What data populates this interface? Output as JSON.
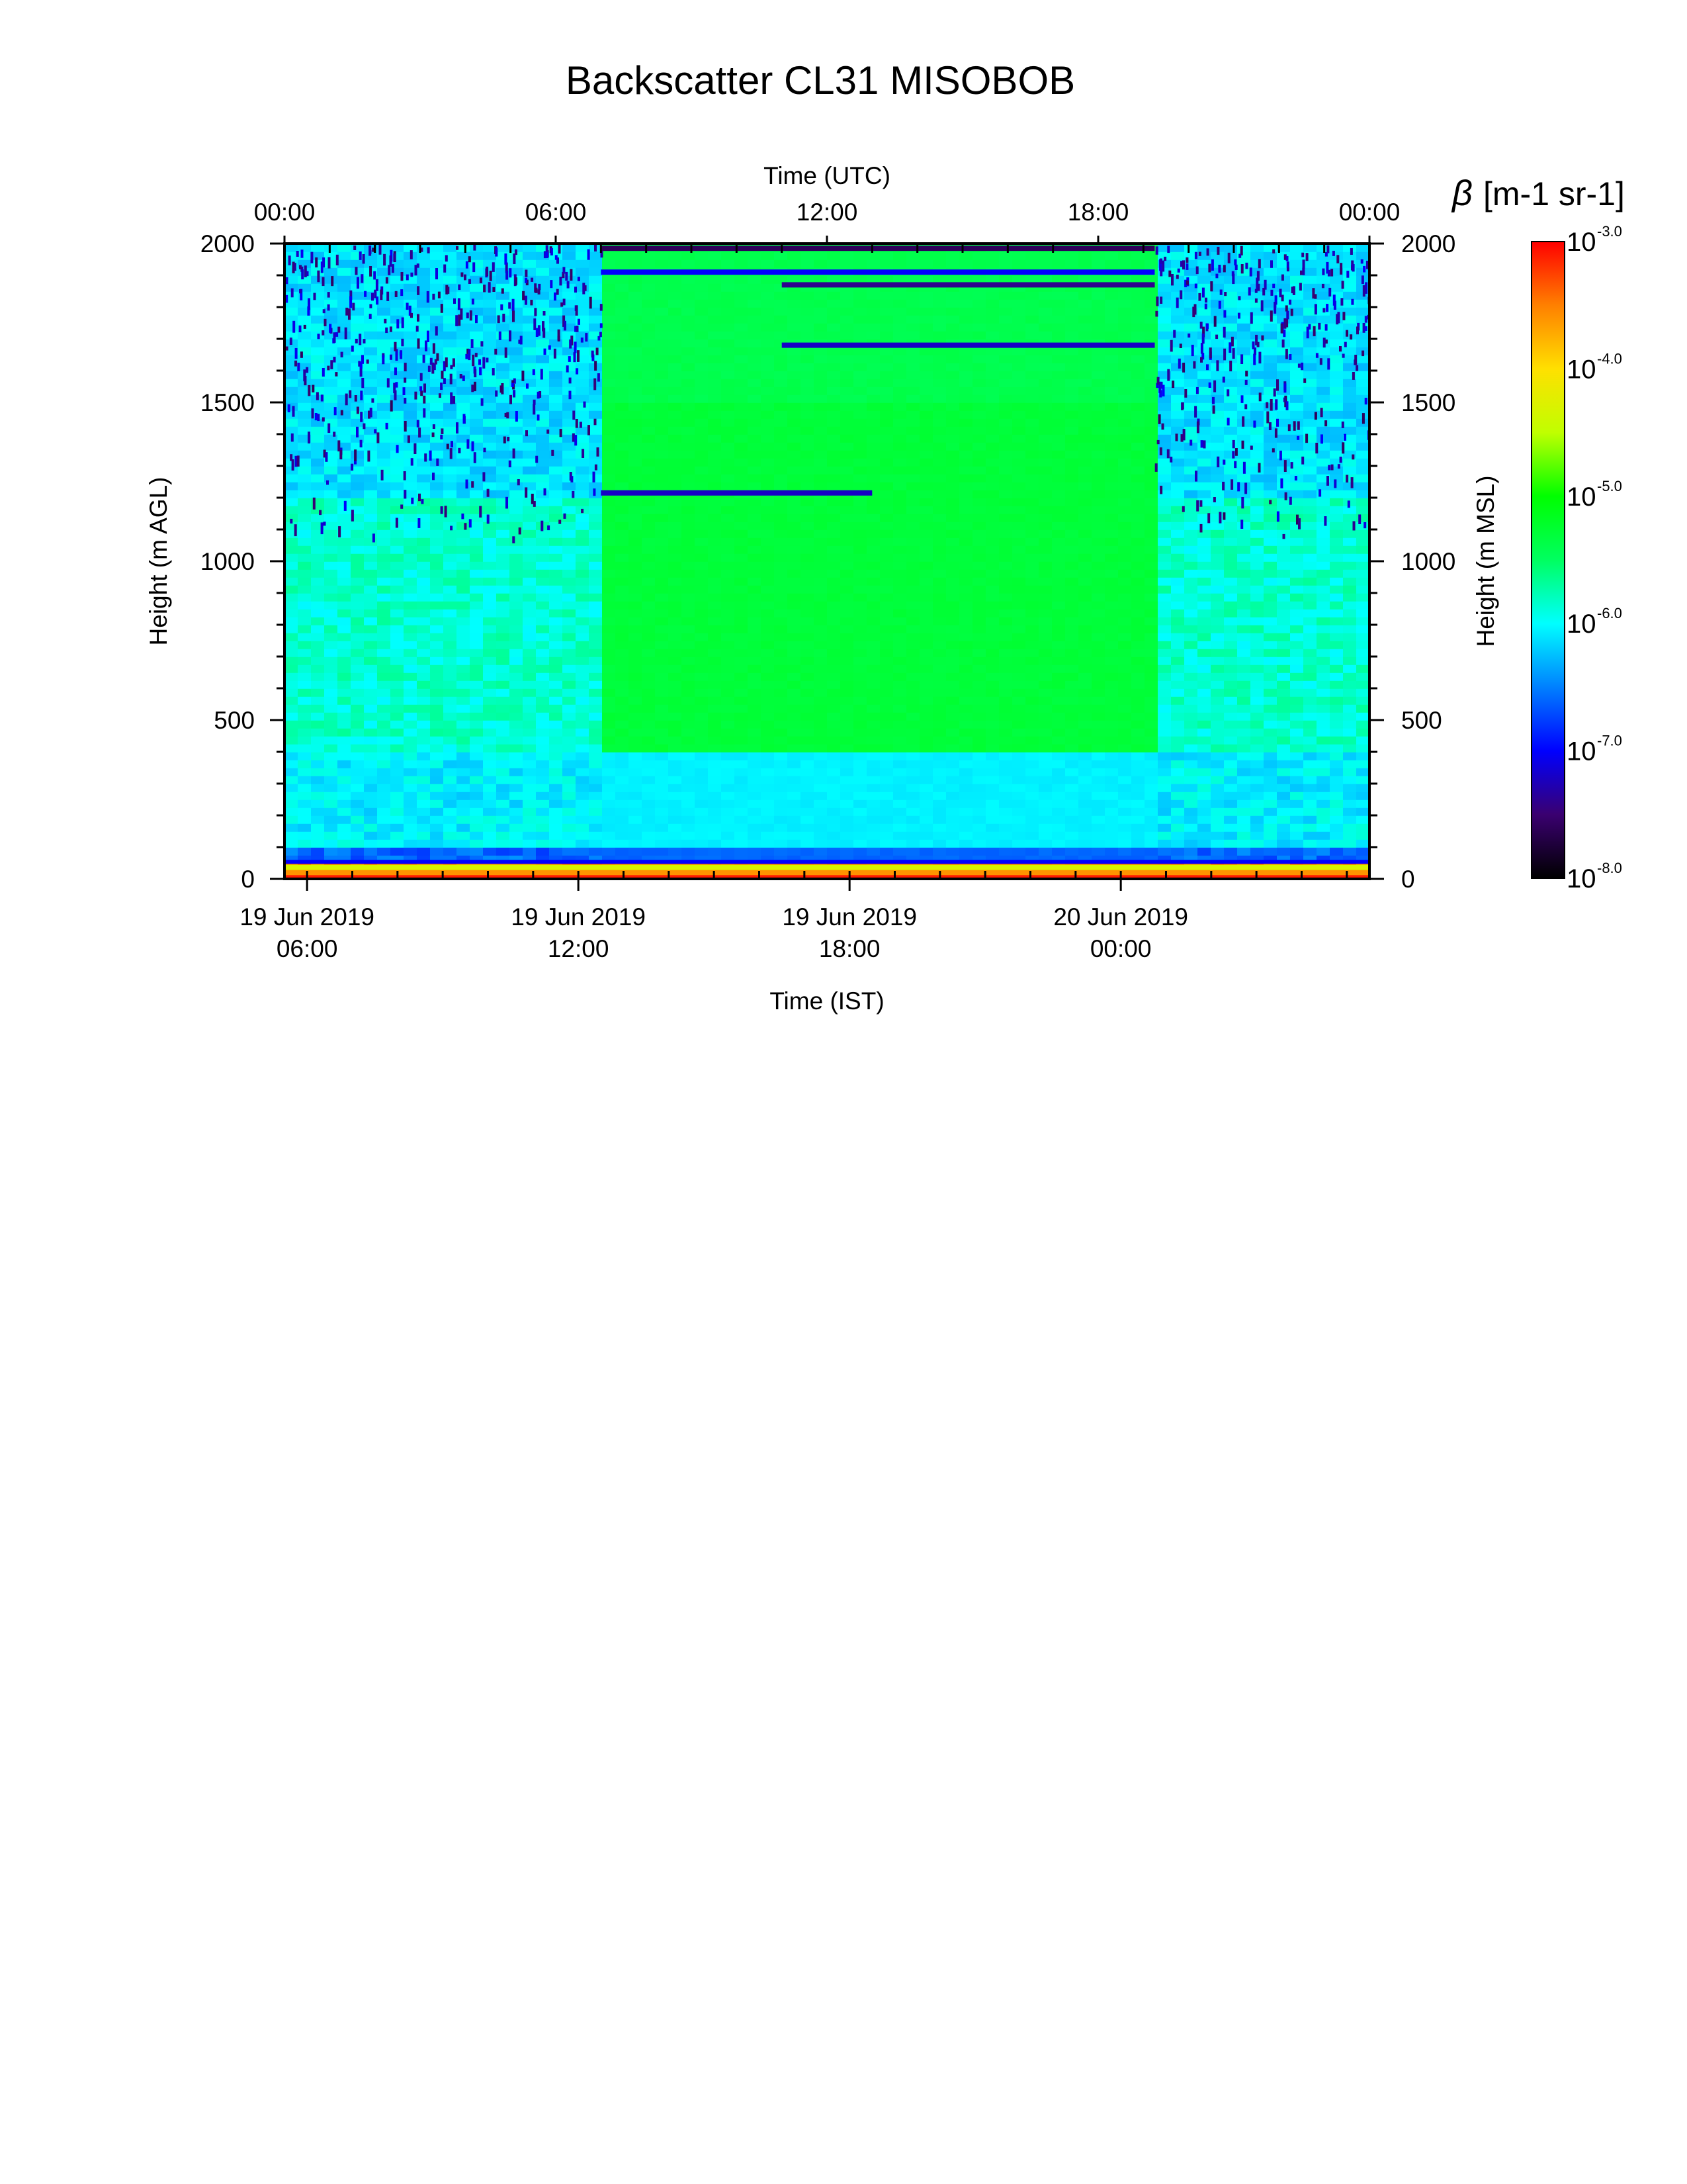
{
  "chart_data": {
    "type": "heatmap",
    "title": "Backscatter CL31 MISOBOB",
    "top_axis": {
      "label": "Time (UTC)",
      "ticks": [
        {
          "value": 0,
          "label": "00:00"
        },
        {
          "value": 6,
          "label": "06:00"
        },
        {
          "value": 12,
          "label": "12:00"
        },
        {
          "value": 18,
          "label": "18:00"
        },
        {
          "value": 24,
          "label": "00:00"
        }
      ],
      "range_hours": [
        0,
        24
      ]
    },
    "bottom_axis": {
      "label": "Time (IST)",
      "ticks": [
        {
          "value": 0.5,
          "date": "19 Jun 2019",
          "time": "06:00"
        },
        {
          "value": 6.5,
          "date": "19 Jun 2019",
          "time": "12:00"
        },
        {
          "value": 12.5,
          "date": "19 Jun 2019",
          "time": "18:00"
        },
        {
          "value": 18.5,
          "date": "20 Jun 2019",
          "time": "00:00"
        }
      ]
    },
    "left_axis": {
      "label": "Height (m AGL)",
      "ticks": [
        0,
        500,
        1000,
        1500,
        2000
      ],
      "ylim": [
        0,
        2000
      ]
    },
    "right_axis": {
      "label": "Height (m MSL)",
      "ticks": [
        0,
        500,
        1000,
        1500,
        2000
      ]
    },
    "colorbar": {
      "label_symbol": "β",
      "label_units": "[m-1 sr-1]",
      "scale": "log",
      "range_log10": [
        -8.0,
        -3.0
      ],
      "tick_base": "10",
      "ticks": [
        {
          "value": -3.0,
          "label": "-3.0"
        },
        {
          "value": -4.0,
          "label": "-4.0"
        },
        {
          "value": -5.0,
          "label": "-5.0"
        },
        {
          "value": -6.0,
          "label": "-6.0"
        },
        {
          "value": -7.0,
          "label": "-7.0"
        },
        {
          "value": -8.0,
          "label": "-8.0"
        }
      ],
      "colors": [
        "#000000",
        "#4b0082",
        "#0000ff",
        "#00bfff",
        "#00ffff",
        "#00ff00",
        "#ffff00",
        "#ff8c00",
        "#ff0000"
      ]
    },
    "regimes": [
      {
        "name": "noisy",
        "t_start_hours": 0,
        "t_end_hours": 7.0
      },
      {
        "name": "layered",
        "t_start_hours": 7.0,
        "t_end_hours": 19.25
      },
      {
        "name": "noisy",
        "t_start_hours": 19.25,
        "t_end_hours": 24
      }
    ],
    "dark_layers": [
      {
        "t_start_hours": 7.0,
        "t_end_hours": 19.25,
        "height_m": 1985,
        "log10_beta": -7.6
      },
      {
        "t_start_hours": 7.0,
        "t_end_hours": 19.25,
        "height_m": 1910,
        "log10_beta": -7.0
      },
      {
        "t_start_hours": 11.0,
        "t_end_hours": 19.25,
        "height_m": 1870,
        "log10_beta": -7.4
      },
      {
        "t_start_hours": 11.0,
        "t_end_hours": 19.25,
        "height_m": 1680,
        "log10_beta": -7.2
      },
      {
        "t_start_hours": 7.0,
        "t_end_hours": 13.0,
        "height_m": 1215,
        "log10_beta": -7.2
      }
    ],
    "surface_layer": {
      "height_m": [
        0,
        60
      ],
      "log10_beta": -3.5
    }
  }
}
